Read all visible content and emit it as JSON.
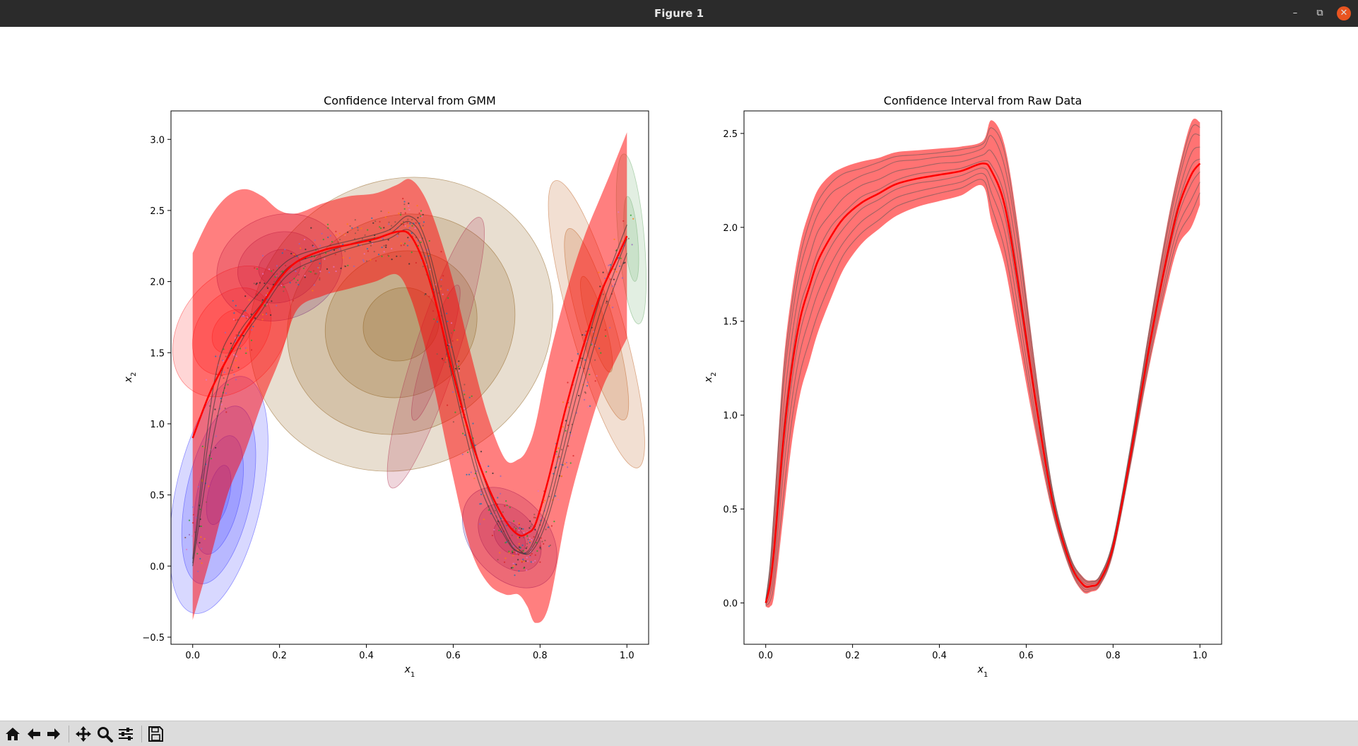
{
  "window": {
    "title": "Figure 1",
    "minimize_icon": "minimize-icon",
    "maximize_icon": "maximize-icon",
    "close_icon": "close-icon"
  },
  "toolbar": {
    "buttons": [
      {
        "name": "home-button",
        "icon": "home-icon"
      },
      {
        "name": "back-button",
        "icon": "arrow-left-icon"
      },
      {
        "name": "forward-button",
        "icon": "arrow-right-icon"
      },
      {
        "name": "pan-button",
        "icon": "move-icon"
      },
      {
        "name": "zoom-button",
        "icon": "magnifier-icon"
      },
      {
        "name": "configure-subplots-button",
        "icon": "sliders-icon"
      },
      {
        "name": "save-button",
        "icon": "floppy-disk-icon"
      }
    ]
  },
  "chart_data": [
    {
      "type": "area",
      "title": "Confidence Interval from GMM",
      "xlabel": "x1",
      "ylabel": "x2",
      "xlim": [
        -0.05,
        1.05
      ],
      "ylim": [
        -0.55,
        3.2
      ],
      "xticks": [
        "0.0",
        "0.2",
        "0.4",
        "0.6",
        "0.8",
        "1.0"
      ],
      "yticks": [
        "−0.5",
        "0.0",
        "0.5",
        "1.0",
        "1.5",
        "2.0",
        "2.5",
        "3.0"
      ],
      "grid": false,
      "colors": {
        "mean": "#ff0000",
        "band": "#ff0000",
        "demos": "#333333"
      },
      "mean": {
        "x": [
          0.0,
          0.04,
          0.08,
          0.12,
          0.16,
          0.2,
          0.24,
          0.3,
          0.36,
          0.42,
          0.47,
          0.5,
          0.53,
          0.56,
          0.6,
          0.64,
          0.68,
          0.72,
          0.75,
          0.77,
          0.79,
          0.82,
          0.86,
          0.9,
          0.94,
          0.97,
          1.0
        ],
        "y": [
          0.9,
          1.22,
          1.46,
          1.66,
          1.84,
          2.02,
          2.14,
          2.22,
          2.26,
          2.3,
          2.35,
          2.33,
          2.15,
          1.85,
          1.35,
          0.9,
          0.56,
          0.32,
          0.22,
          0.23,
          0.3,
          0.62,
          1.12,
          1.55,
          1.92,
          2.12,
          2.32
        ]
      },
      "upper": [
        2.2,
        2.45,
        2.6,
        2.65,
        2.6,
        2.5,
        2.48,
        2.55,
        2.6,
        2.62,
        2.68,
        2.72,
        2.62,
        2.4,
        2.0,
        1.5,
        1.05,
        0.75,
        0.75,
        0.82,
        1.0,
        1.45,
        1.92,
        2.3,
        2.6,
        2.82,
        3.05
      ],
      "lower": [
        -0.38,
        0.05,
        0.5,
        0.8,
        1.15,
        1.45,
        1.8,
        1.9,
        1.95,
        2.0,
        2.05,
        1.9,
        1.6,
        1.2,
        0.62,
        0.12,
        -0.12,
        -0.2,
        -0.2,
        -0.28,
        -0.4,
        -0.28,
        0.35,
        0.82,
        1.22,
        1.42,
        1.6
      ],
      "demos": [
        {
          "x": [
            0.0,
            0.05,
            0.1,
            0.16,
            0.22,
            0.3,
            0.38,
            0.45,
            0.5,
            0.54,
            0.6,
            0.66,
            0.72,
            0.75,
            0.78,
            0.82,
            0.88,
            0.94,
            1.0
          ],
          "y": [
            0.02,
            1.15,
            1.6,
            1.85,
            2.1,
            2.2,
            2.28,
            2.33,
            2.42,
            2.2,
            1.4,
            0.65,
            0.22,
            0.1,
            0.12,
            0.42,
            1.15,
            1.8,
            2.3
          ]
        },
        {
          "x": [
            0.0,
            0.05,
            0.1,
            0.16,
            0.22,
            0.3,
            0.38,
            0.45,
            0.5,
            0.54,
            0.6,
            0.66,
            0.72,
            0.75,
            0.78,
            0.82,
            0.88,
            0.94,
            1.0
          ],
          "y": [
            0.0,
            0.95,
            1.5,
            1.8,
            2.05,
            2.17,
            2.25,
            2.3,
            2.36,
            2.12,
            1.3,
            0.58,
            0.2,
            0.1,
            0.14,
            0.5,
            1.25,
            1.9,
            2.4
          ]
        },
        {
          "x": [
            0.0,
            0.05,
            0.1,
            0.16,
            0.22,
            0.3,
            0.38,
            0.45,
            0.5,
            0.54,
            0.6,
            0.66,
            0.72,
            0.75,
            0.78,
            0.82,
            0.88,
            0.94,
            1.0
          ],
          "y": [
            0.05,
            1.3,
            1.7,
            1.95,
            2.15,
            2.24,
            2.3,
            2.36,
            2.46,
            2.26,
            1.5,
            0.72,
            0.26,
            0.12,
            0.1,
            0.36,
            1.05,
            1.7,
            2.2
          ]
        }
      ],
      "gaussians": [
        {
          "center": [
            0.48,
            1.7
          ],
          "radii": [
            0.36,
            1.0
          ],
          "angle_deg": -35,
          "color": "#8b5a14",
          "levels": 4
        },
        {
          "center": [
            0.06,
            0.5
          ],
          "radii": [
            0.1,
            0.85
          ],
          "angle_deg": 12,
          "color": "#3a3aff",
          "levels": 4
        },
        {
          "center": [
            0.09,
            1.65
          ],
          "radii": [
            0.12,
            0.5
          ],
          "angle_deg": 35,
          "color": "#ff3030",
          "levels": 3
        },
        {
          "center": [
            0.2,
            2.1
          ],
          "radii": [
            0.12,
            0.45
          ],
          "angle_deg": 70,
          "color": "#7a2a7a",
          "levels": 3
        },
        {
          "center": [
            0.73,
            0.2
          ],
          "radii": [
            0.09,
            0.4
          ],
          "angle_deg": -40,
          "color": "#4a2aa0",
          "levels": 3
        },
        {
          "center": [
            0.93,
            1.7
          ],
          "radii": [
            0.06,
            1.05
          ],
          "angle_deg": -16,
          "color": "#c06020",
          "levels": 3
        },
        {
          "center": [
            1.01,
            2.3
          ],
          "radii": [
            0.03,
            0.6
          ],
          "angle_deg": -5,
          "color": "#70b070",
          "levels": 2
        },
        {
          "center": [
            0.56,
            1.5
          ],
          "radii": [
            0.05,
            1.0
          ],
          "angle_deg": 18,
          "color": "#b03050",
          "levels": 2
        }
      ]
    },
    {
      "type": "area",
      "title": "Confidence Interval from Raw Data",
      "xlabel": "x1",
      "ylabel": "x2",
      "xlim": [
        -0.05,
        1.05
      ],
      "ylim": [
        -0.22,
        2.62
      ],
      "xticks": [
        "0.0",
        "0.2",
        "0.4",
        "0.6",
        "0.8",
        "1.0"
      ],
      "yticks": [
        "0.0",
        "0.5",
        "1.0",
        "1.5",
        "2.0",
        "2.5"
      ],
      "grid": false,
      "colors": {
        "mean": "#ff0000",
        "band": "#ff0000",
        "demos": "#555555"
      },
      "mean": {
        "x": [
          0.0,
          0.01,
          0.02,
          0.04,
          0.06,
          0.08,
          0.1,
          0.12,
          0.15,
          0.18,
          0.22,
          0.26,
          0.3,
          0.35,
          0.4,
          0.45,
          0.5,
          0.52,
          0.55,
          0.58,
          0.62,
          0.66,
          0.7,
          0.73,
          0.75,
          0.77,
          0.8,
          0.84,
          0.88,
          0.92,
          0.95,
          0.98,
          1.0
        ],
        "y": [
          0.0,
          0.1,
          0.3,
          0.85,
          1.25,
          1.52,
          1.68,
          1.82,
          1.95,
          2.05,
          2.13,
          2.18,
          2.23,
          2.26,
          2.28,
          2.3,
          2.34,
          2.3,
          2.12,
          1.72,
          1.1,
          0.55,
          0.22,
          0.1,
          0.09,
          0.12,
          0.3,
          0.78,
          1.32,
          1.8,
          2.1,
          2.28,
          2.34
        ]
      },
      "upper": [
        0.02,
        0.22,
        0.55,
        1.25,
        1.65,
        1.92,
        2.08,
        2.2,
        2.28,
        2.32,
        2.35,
        2.37,
        2.4,
        2.41,
        2.42,
        2.43,
        2.46,
        2.57,
        2.44,
        2.02,
        1.28,
        0.62,
        0.26,
        0.14,
        0.12,
        0.15,
        0.34,
        0.84,
        1.42,
        1.96,
        2.3,
        2.56,
        2.56
      ]
    }
  ]
}
